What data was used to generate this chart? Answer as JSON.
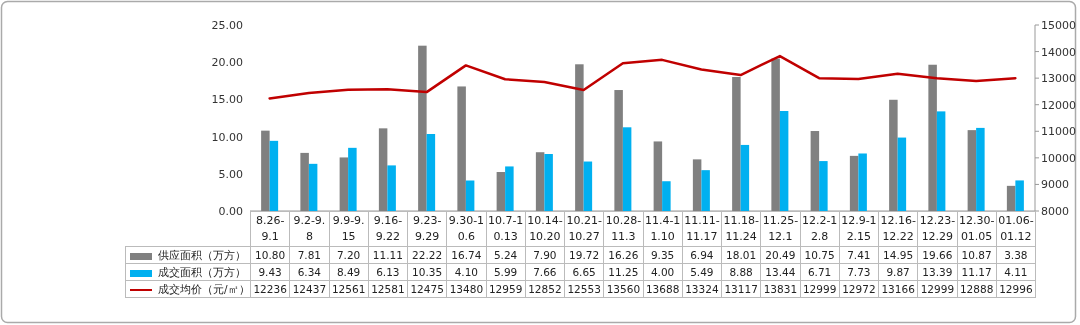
{
  "chart_data": {
    "type": "bar",
    "categories": [
      "8.26-9.1",
      "9.2-9.8",
      "9.9-9.15",
      "9.16-9.22",
      "9.23-9.29",
      "9.30-10.6",
      "10.7-10.13",
      "10.14-10.20",
      "10.21-10.27",
      "10.28-11.3",
      "11.4-11.10",
      "11.11-11.17",
      "11.18-11.24",
      "11.25-12.1",
      "12.2-12.8",
      "12.9-12.15",
      "12.16-12.22",
      "12.23-12.29",
      "12.30-01.05",
      "01.06-01.12"
    ],
    "series": [
      {
        "name": "供应面积（万方）",
        "color": "#808080",
        "values": [
          10.8,
          7.81,
          7.2,
          11.11,
          22.22,
          16.74,
          5.24,
          7.9,
          19.72,
          16.26,
          9.35,
          6.94,
          18.01,
          20.49,
          10.75,
          7.41,
          14.95,
          19.66,
          10.87,
          3.38
        ],
        "value_labels": [
          "10.80",
          "7.81",
          "7.20",
          "11.11",
          "22.22",
          "16.74",
          "5.24",
          "7.90",
          "19.72",
          "16.26",
          "9.35",
          "6.94",
          "18.01",
          "20.49",
          "10.75",
          "7.41",
          "14.95",
          "19.66",
          "10.87",
          "3.38"
        ]
      },
      {
        "name": "成交面积（万方）",
        "color": "#00b0f0",
        "values": [
          9.43,
          6.34,
          8.49,
          6.13,
          10.35,
          4.1,
          5.99,
          7.66,
          6.65,
          11.25,
          4.0,
          5.49,
          8.88,
          13.44,
          6.71,
          7.73,
          9.87,
          13.39,
          11.17,
          4.11
        ],
        "value_labels": [
          "9.43",
          "6.34",
          "8.49",
          "6.13",
          "10.35",
          "4.10",
          "5.99",
          "7.66",
          "6.65",
          "11.25",
          "4.00",
          "5.49",
          "8.88",
          "13.44",
          "6.71",
          "7.73",
          "9.87",
          "13.39",
          "11.17",
          "4.11"
        ]
      },
      {
        "name": "成交均价（元/㎡）",
        "color": "#c00000",
        "type": "line",
        "axis": "y2",
        "values": [
          12236,
          12437,
          12561,
          12581,
          12475,
          13480,
          12959,
          12852,
          12553,
          13560,
          13688,
          13324,
          13117,
          13831,
          12999,
          12972,
          13166,
          12999,
          12888,
          12996
        ],
        "value_labels": [
          "12236",
          "12437",
          "12561",
          "12581",
          "12475",
          "13480",
          "12959",
          "12852",
          "12553",
          "13560",
          "13688",
          "13324",
          "13117",
          "13831",
          "12999",
          "12972",
          "13166",
          "12999",
          "12888",
          "12996"
        ]
      }
    ],
    "ylim": [
      0,
      25
    ],
    "yticks": [
      {
        "value": 0,
        "label": "0.00"
      },
      {
        "value": 5,
        "label": "5.00"
      },
      {
        "value": 10,
        "label": "10.00"
      },
      {
        "value": 15,
        "label": "15.00"
      },
      {
        "value": 20,
        "label": "20.00"
      },
      {
        "value": 25,
        "label": "25.00"
      }
    ],
    "y2lim": [
      8000,
      15000
    ],
    "y2ticks": [
      8000,
      9000,
      10000,
      11000,
      12000,
      13000,
      14000,
      15000
    ],
    "legend": "bottom left",
    "grid": false,
    "marker": "none"
  }
}
